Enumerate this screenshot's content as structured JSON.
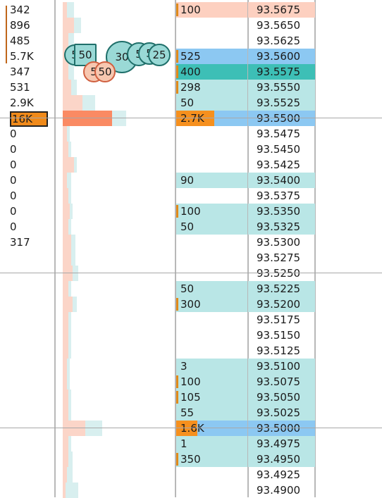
{
  "colors": {
    "ask_bg": "#fdd0c0",
    "bid_bg": "#b9e6e6",
    "highlight_ask": "#8cc8f2",
    "highlight_bid": "#3dbfb6",
    "last_trade": "#f6901e",
    "hist_ask": "#fbd5c8",
    "hist_bid": "#d8efef",
    "hist_big": "#fa8a63"
  },
  "volumes": [
    "342",
    "896",
    "485",
    "5.7K",
    "347",
    "531",
    "2.9K",
    "16K",
    "0",
    "0",
    "0",
    "0",
    "0",
    "0",
    "0",
    "317"
  ],
  "ladder": [
    {
      "size": "100",
      "price": "93.5675",
      "side": "ask",
      "marker": true
    },
    {
      "size": "",
      "price": "93.5650",
      "side": "none",
      "marker": false
    },
    {
      "size": "",
      "price": "93.5625",
      "side": "none",
      "marker": false
    },
    {
      "size": "525",
      "price": "93.5600",
      "side": "best_ask",
      "marker": true
    },
    {
      "size": "400",
      "price": "93.5575",
      "side": "best_bid",
      "marker": true
    },
    {
      "size": "298",
      "price": "93.5550",
      "side": "bid",
      "marker": true
    },
    {
      "size": "50",
      "price": "93.5525",
      "side": "bid",
      "marker": false
    },
    {
      "size": "2.7K",
      "price": "93.5500",
      "side": "last",
      "marker": false
    },
    {
      "size": "",
      "price": "93.5475",
      "side": "none",
      "marker": false
    },
    {
      "size": "",
      "price": "93.5450",
      "side": "none",
      "marker": false
    },
    {
      "size": "",
      "price": "93.5425",
      "side": "none",
      "marker": false
    },
    {
      "size": "90",
      "price": "93.5400",
      "side": "bid",
      "marker": false
    },
    {
      "size": "",
      "price": "93.5375",
      "side": "none",
      "marker": false
    },
    {
      "size": "100",
      "price": "93.5350",
      "side": "bid",
      "marker": true
    },
    {
      "size": "50",
      "price": "93.5325",
      "side": "bid",
      "marker": false
    },
    {
      "size": "",
      "price": "93.5300",
      "side": "none",
      "marker": false
    },
    {
      "size": "",
      "price": "93.5275",
      "side": "none",
      "marker": false
    },
    {
      "size": "",
      "price": "93.5250",
      "side": "none",
      "marker": false
    },
    {
      "size": "50",
      "price": "93.5225",
      "side": "bid",
      "marker": false
    },
    {
      "size": "300",
      "price": "93.5200",
      "side": "bid",
      "marker": true
    },
    {
      "size": "",
      "price": "93.5175",
      "side": "none",
      "marker": false
    },
    {
      "size": "",
      "price": "93.5150",
      "side": "none",
      "marker": false
    },
    {
      "size": "",
      "price": "93.5125",
      "side": "none",
      "marker": false
    },
    {
      "size": "3",
      "price": "93.5100",
      "side": "bid",
      "marker": false
    },
    {
      "size": "100",
      "price": "93.5075",
      "side": "bid",
      "marker": true
    },
    {
      "size": "105",
      "price": "93.5050",
      "side": "bid",
      "marker": true
    },
    {
      "size": "55",
      "price": "93.5025",
      "side": "bid",
      "marker": false
    },
    {
      "size": "1.6K",
      "price": "93.5000",
      "side": "last",
      "marker": false
    },
    {
      "size": "1",
      "price": "93.4975",
      "side": "bid",
      "marker": false
    },
    {
      "size": "350",
      "price": "93.4950",
      "side": "bid",
      "marker": true
    },
    {
      "size": "",
      "price": "93.4925",
      "side": "none",
      "marker": false
    },
    {
      "size": "",
      "price": "93.4900",
      "side": "none",
      "marker": false
    }
  ],
  "bubbles": [
    {
      "label": "5",
      "kind": "bid"
    },
    {
      "label": "50",
      "kind": "bid_square"
    },
    {
      "label": "30",
      "kind": "bid_large"
    },
    {
      "label": "5",
      "kind": "bid"
    },
    {
      "label": "5",
      "kind": "bid"
    },
    {
      "label": "25",
      "kind": "bid"
    },
    {
      "label": "5",
      "kind": "ask"
    },
    {
      "label": "50",
      "kind": "ask"
    }
  ]
}
